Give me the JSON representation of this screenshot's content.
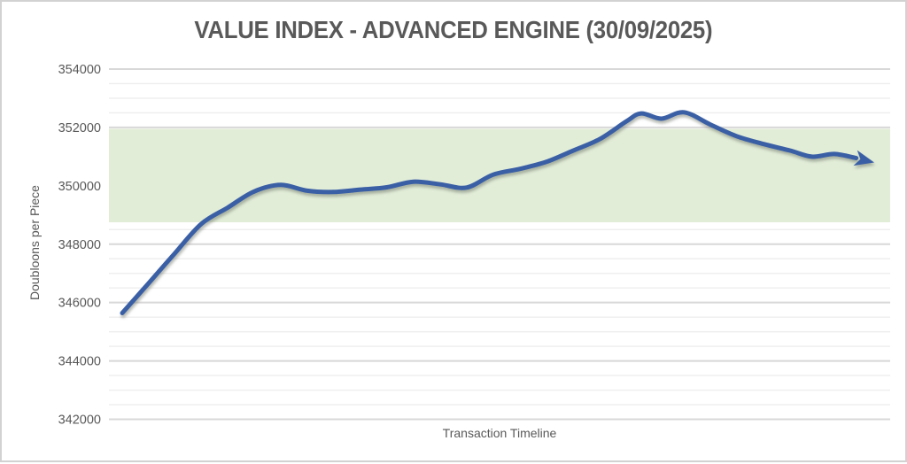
{
  "chart_data": {
    "type": "line",
    "title": "VALUE INDEX - ADVANCED ENGINE (30/09/2025)",
    "xlabel": "Transaction Timeline",
    "ylabel": "Doubloons per Piece",
    "ylim": [
      342000,
      354000
    ],
    "y_major_step": 2000,
    "y_minor_step": 500,
    "yticks": [
      354000,
      352000,
      350000,
      348000,
      346000,
      344000,
      342000
    ],
    "xticks": "none",
    "legend": "none",
    "grid": {
      "horizontal_major": true,
      "horizontal_minor": true,
      "vertical": false
    },
    "highlight_band": {
      "from": 348750,
      "to": 352000
    },
    "series": [
      {
        "name": "value-index",
        "style": "smooth-line-with-arrow-end",
        "x_frac": [
          0,
          0.034,
          0.069,
          0.105,
          0.14,
          0.175,
          0.211,
          0.246,
          0.281,
          0.317,
          0.352,
          0.387,
          0.423,
          0.458,
          0.493,
          0.529,
          0.564,
          0.599,
          0.635,
          0.67,
          0.69,
          0.717,
          0.747,
          0.782,
          0.817,
          0.853,
          0.888,
          0.917,
          0.947,
          0.976,
          1.0
        ],
        "values": [
          345640,
          346630,
          347660,
          348690,
          349250,
          349800,
          350030,
          349830,
          349790,
          349870,
          349950,
          350140,
          350050,
          349940,
          350380,
          350580,
          350820,
          351200,
          351600,
          352200,
          352480,
          352300,
          352520,
          352100,
          351700,
          351430,
          351210,
          351000,
          351090,
          350950,
          350800
        ]
      }
    ]
  },
  "colors": {
    "line": "#3a5fa5",
    "band": "#e2edd8",
    "major_gridline": "#d8d8d8",
    "minor_gridline": "#eeeeee",
    "text": "#595959",
    "frame_border": "#d2d2d2",
    "background": "#ffffff"
  }
}
